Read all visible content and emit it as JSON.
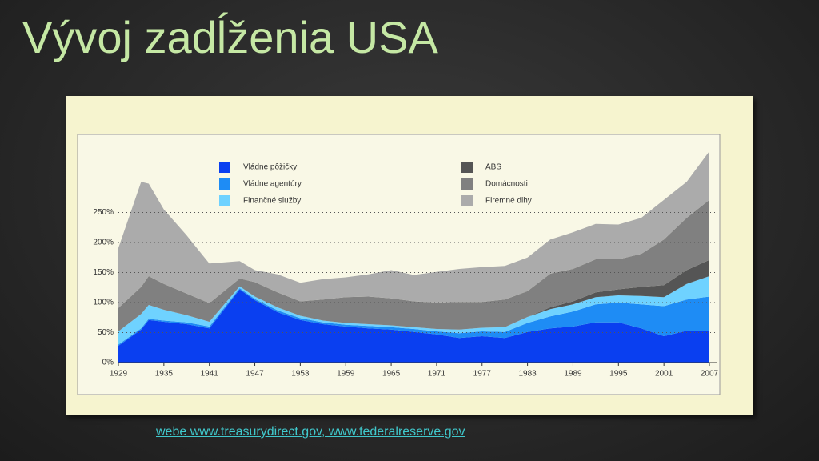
{
  "slide_title": "Vývoj zadĺženia USA",
  "source": "webe www.treasurydirect.gov, www.federalreserve.gov",
  "chart_data": {
    "type": "stacked_area",
    "x": [
      1929,
      1932,
      1933,
      1935,
      1938,
      1941,
      1945,
      1947,
      1950,
      1953,
      1956,
      1959,
      1962,
      1965,
      1968,
      1971,
      1974,
      1977,
      1980,
      1983,
      1986,
      1989,
      1992,
      1995,
      1998,
      2001,
      2004,
      2007
    ],
    "xlim": [
      1929,
      2007
    ],
    "xticks": [
      1929,
      1935,
      1941,
      1947,
      1953,
      1959,
      1965,
      1971,
      1977,
      1983,
      1989,
      1995,
      2001,
      2007
    ],
    "ylim": [
      0,
      380
    ],
    "yticks": [
      {
        "value": 0,
        "label": "0%"
      },
      {
        "value": 50,
        "label": "50%"
      },
      {
        "value": 100,
        "label": "100%"
      },
      {
        "value": 150,
        "label": "150%"
      },
      {
        "value": 200,
        "label": "200%"
      },
      {
        "value": 250,
        "label": "250%"
      }
    ],
    "grid": true,
    "legend": "top",
    "series": [
      {
        "name": "Vládne pôžičky",
        "color": "#0a3ff0",
        "values": [
          28,
          55,
          71,
          68,
          64,
          57,
          122,
          104,
          84,
          71,
          64,
          60,
          57,
          55,
          51,
          47,
          41,
          44,
          41,
          51,
          57,
          60,
          67,
          67,
          57,
          44,
          53,
          53
        ]
      },
      {
        "name": "Vládne agentúry",
        "color": "#1e8cf5",
        "values": [
          2,
          2,
          2,
          2,
          3,
          3,
          2,
          2,
          3,
          3,
          3,
          3,
          4,
          4,
          5,
          5,
          8,
          8,
          10,
          15,
          20,
          25,
          30,
          33,
          40,
          50,
          52,
          57
        ]
      },
      {
        "name": "Finančné služby",
        "color": "#6fd2ff",
        "values": [
          22,
          24,
          23,
          18,
          12,
          8,
          3,
          4,
          5,
          4,
          3,
          3,
          3,
          3,
          3,
          4,
          6,
          6,
          8,
          10,
          12,
          12,
          12,
          12,
          14,
          15,
          26,
          34
        ]
      },
      {
        "name": "ABS",
        "color": "#555555",
        "values": [
          0,
          0,
          0,
          0,
          0,
          0,
          0,
          0,
          0,
          0,
          0,
          0,
          0,
          0,
          0,
          0,
          0,
          0,
          0,
          0,
          3,
          5,
          8,
          10,
          15,
          20,
          23,
          27
        ]
      },
      {
        "name": "Domácnosti",
        "color": "#808080",
        "values": [
          39,
          45,
          48,
          43,
          36,
          31,
          13,
          24,
          25,
          24,
          35,
          43,
          46,
          45,
          43,
          44,
          46,
          43,
          46,
          43,
          56,
          54,
          55,
          50,
          55,
          76,
          87,
          100
        ]
      },
      {
        "name": "Firemné dlhy",
        "color": "#ababab",
        "values": [
          100,
          175,
          154,
          124,
          97,
          66,
          29,
          20,
          30,
          31,
          34,
          33,
          37,
          47,
          44,
          51,
          55,
          58,
          56,
          56,
          57,
          61,
          59,
          58,
          60,
          66,
          60,
          81
        ]
      }
    ]
  }
}
